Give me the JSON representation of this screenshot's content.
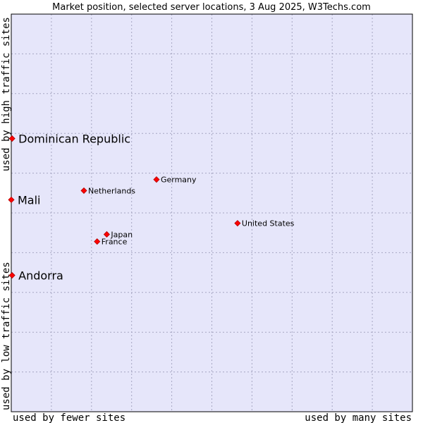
{
  "chart_data": {
    "type": "scatter",
    "title": "Market position, selected server locations, 3 Aug 2025, W3Techs.com",
    "xlabel_left": "used by fewer sites",
    "xlabel_right": "used by many sites",
    "ylabel_bottom": "used by low traffic sites",
    "ylabel_top": "used by high traffic sites",
    "grid": true,
    "xlim": [
      0,
      10
    ],
    "ylim": [
      0,
      10
    ],
    "points": [
      {
        "name": "Dominican Republic",
        "x": 0.02,
        "y": 6.87,
        "emphasis": true
      },
      {
        "name": "Germany",
        "x": 3.62,
        "y": 5.84,
        "emphasis": false
      },
      {
        "name": "Netherlands",
        "x": 1.81,
        "y": 5.56,
        "emphasis": false
      },
      {
        "name": "Mali",
        "x": 0.0,
        "y": 5.33,
        "emphasis": true
      },
      {
        "name": "United States",
        "x": 5.64,
        "y": 4.74,
        "emphasis": false
      },
      {
        "name": "Japan",
        "x": 2.38,
        "y": 4.46,
        "emphasis": false
      },
      {
        "name": "France",
        "x": 2.14,
        "y": 4.28,
        "emphasis": false
      },
      {
        "name": "Andorra",
        "x": 0.02,
        "y": 3.43,
        "emphasis": true
      }
    ]
  },
  "colors": {
    "plot_bg": "#e6e6fa",
    "grid": "#a6a6c2",
    "axis": "#000000",
    "marker": "#ff0000",
    "marker_edge": "#b00000"
  }
}
